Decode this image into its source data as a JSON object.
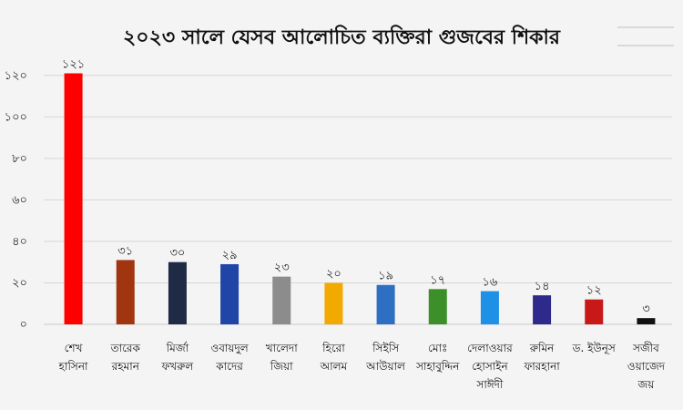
{
  "chart_data": {
    "type": "bar",
    "title": "২০২৩ সালে যেসব আলোচিত ব্যক্তিরা গুজবের শিকার",
    "xlabel": "",
    "ylabel": "",
    "ylim": [
      0,
      130
    ],
    "yticks": [
      0,
      20,
      40,
      60,
      80,
      100,
      120
    ],
    "ytick_labels": [
      "০",
      "২০",
      "৪০",
      "৬০",
      "৮০",
      "১০০",
      "১২০"
    ],
    "grid": true,
    "legend": "none",
    "categories": [
      [
        "শেখ",
        "হাসিনা"
      ],
      [
        "তারেক",
        "রহমান"
      ],
      [
        "মির্জা",
        "ফখরুল"
      ],
      [
        "ওবায়দুল",
        "কাদের"
      ],
      [
        "খালেদা",
        "জিয়া"
      ],
      [
        "হিরো",
        "আলম"
      ],
      [
        "সিইসি",
        "আউয়াল"
      ],
      [
        "মোঃ",
        "সাহাবুদ্দিন"
      ],
      [
        "দেলাওয়ার",
        "হোসাইন",
        "সাঈদী"
      ],
      [
        "রুমিন",
        "ফারহানা"
      ],
      [
        "ড. ইউনূস"
      ],
      [
        "সজীব",
        "ওয়াজেদ",
        "জয়"
      ]
    ],
    "values": [
      121,
      31,
      30,
      29,
      23,
      20,
      19,
      17,
      16,
      14,
      12,
      3
    ],
    "value_labels": [
      "১২১",
      "৩১",
      "৩০",
      "২৯",
      "২৩",
      "২০",
      "১৯",
      "১৭",
      "১৬",
      "১৪",
      "১২",
      "৩"
    ],
    "colors": [
      "#ff0000",
      "#a0350f",
      "#1f2a44",
      "#1f45a6",
      "#8c8c8c",
      "#f2a900",
      "#2e6fc4",
      "#3d8f2a",
      "#1e90e6",
      "#2e2a8c",
      "#c81818",
      "#111111"
    ]
  }
}
